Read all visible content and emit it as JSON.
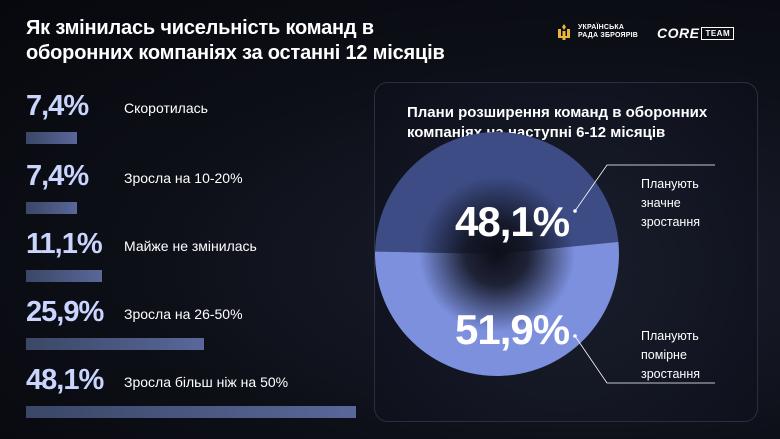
{
  "header": {
    "title": "Як змінилась чисельність команд в оборонних компаніях за останні 12 місяців",
    "logo_uarz_line1": "Українська",
    "logo_uarz_line2": "рада зброярів",
    "logo_core": "CORE",
    "logo_team": "TEAM"
  },
  "chart_data": [
    {
      "type": "bar",
      "title": "Як змінилась чисельність команд в оборонних компаніях за останні 12 місяців",
      "categories": [
        "Скоротилась",
        "Зросла на 10-20%",
        "Майже не змінилась",
        "Зросла на 26-50%",
        "Зросла більш ніж на 50%"
      ],
      "values": [
        7.4,
        7.4,
        11.1,
        25.9,
        48.1
      ],
      "value_labels": [
        "7,4%",
        "7,4%",
        "11,1%",
        "25,9%",
        "48,1%"
      ],
      "unit": "%",
      "orientation": "horizontal"
    },
    {
      "type": "pie",
      "title": "Плани розширення команд в оборонних компаніях на наступні 6-12 місяців",
      "slices": [
        {
          "label_line1": "Планують",
          "label_line2": "значне",
          "label_line3": "зростання",
          "value": 48.1,
          "value_label": "48,1%",
          "color": "#3d4c85"
        },
        {
          "label_line1": "Планують",
          "label_line2": "помірне",
          "label_line3": "зростання",
          "value": 51.9,
          "value_label": "51,9%",
          "color": "#7c90de"
        }
      ]
    }
  ]
}
